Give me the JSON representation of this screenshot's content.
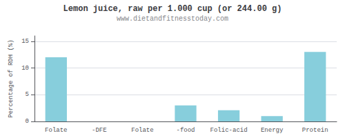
{
  "chart_data": {
    "type": "bar",
    "title": "Lemon juice, raw per 1.000 cup (or 244.00 g)",
    "subtitle": "www.dietandfitnesstoday.com",
    "ylabel": "Percentage of RDH (%)",
    "categories": [
      "Folate",
      "-DFE",
      "Folate",
      "-food",
      "Folic-acid",
      "Energy",
      "Protein"
    ],
    "values": [
      12.0,
      0.0,
      0.0,
      3.0,
      2.1,
      1.0,
      13.0
    ],
    "color": "#87CEDC",
    "ylim": [
      0,
      16
    ],
    "yticks": [
      0,
      5,
      10,
      15
    ],
    "grid": true
  }
}
